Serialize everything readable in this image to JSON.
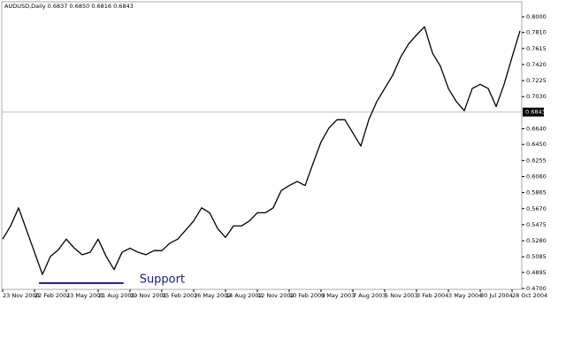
{
  "chart_data": {
    "type": "line",
    "title": "AUDUSD,Daily  0.6837 0.6850 0.6816 0.6843",
    "x": [
      0,
      16,
      32,
      48,
      64,
      80,
      96,
      112,
      128,
      144,
      160,
      176,
      192,
      208,
      224,
      240,
      256,
      272,
      288,
      304,
      320,
      336,
      352,
      368,
      384,
      400,
      416,
      432,
      448,
      464,
      480,
      496,
      512,
      528,
      544,
      560,
      576,
      592,
      608,
      624,
      640,
      656,
      672,
      688,
      704,
      720,
      736,
      752,
      768,
      784,
      800,
      816,
      832,
      848,
      864,
      880,
      896,
      912,
      928,
      944,
      960,
      976,
      992,
      1008,
      1024,
      1040
    ],
    "series": [
      {
        "color": "#000000",
        "values": [
          0.53,
          0.546,
          0.568,
          0.541,
          0.514,
          0.487,
          0.509,
          0.517,
          0.53,
          0.519,
          0.511,
          0.514,
          0.53,
          0.509,
          0.493,
          0.514,
          0.519,
          0.514,
          0.511,
          0.516,
          0.516,
          0.525,
          0.53,
          0.541,
          0.552,
          0.568,
          0.562,
          0.543,
          0.532,
          0.546,
          0.546,
          0.552,
          0.562,
          0.562,
          0.568,
          0.589,
          0.595,
          0.6,
          0.595,
          0.622,
          0.648,
          0.665,
          0.675,
          0.675,
          0.659,
          0.643,
          0.675,
          0.697,
          0.713,
          0.729,
          0.751,
          0.767,
          0.778,
          0.788,
          0.756,
          0.74,
          0.713,
          0.697,
          0.686,
          0.713,
          0.718,
          0.713,
          0.691,
          0.718,
          0.751,
          0.783
        ]
      }
    ],
    "xlim": [
      0,
      1040
    ],
    "xticks": [
      {
        "value": 0,
        "label": "23 Nov 2000"
      },
      {
        "value": 64,
        "label": "22 Feb 2001"
      },
      {
        "value": 128,
        "label": "23 May 2001"
      },
      {
        "value": 192,
        "label": "21 Aug 2001"
      },
      {
        "value": 256,
        "label": "19 Nov 2001"
      },
      {
        "value": 320,
        "label": "15 Feb 2002"
      },
      {
        "value": 384,
        "label": "16 May 2002"
      },
      {
        "value": 448,
        "label": "14 Aug 2002"
      },
      {
        "value": 512,
        "label": "12 Nov 2002"
      },
      {
        "value": 576,
        "label": "10 Feb 2003"
      },
      {
        "value": 640,
        "label": "9 May 2003"
      },
      {
        "value": 704,
        "label": "7 Aug 2003"
      },
      {
        "value": 768,
        "label": "5 Nov 2003"
      },
      {
        "value": 832,
        "label": "3 Feb 2004"
      },
      {
        "value": 896,
        "label": "3 May 2004"
      },
      {
        "value": 960,
        "label": "30 Jul 2004"
      },
      {
        "value": 1024,
        "label": "28 Oct 2004"
      }
    ],
    "ylim": [
      0.4689,
      0.8183
    ],
    "yticks": [
      {
        "value": 0.8,
        "label": "0.8000"
      },
      {
        "value": 0.781,
        "label": "0.7810"
      },
      {
        "value": 0.7615,
        "label": "0.7615"
      },
      {
        "value": 0.742,
        "label": "0.7420"
      },
      {
        "value": 0.7225,
        "label": "0.7225"
      },
      {
        "value": 0.703,
        "label": "0.7030"
      },
      {
        "value": 0.664,
        "label": "0.6640"
      },
      {
        "value": 0.645,
        "label": "0.6450"
      },
      {
        "value": 0.6255,
        "label": "0.6255"
      },
      {
        "value": 0.606,
        "label": "0.6060"
      },
      {
        "value": 0.5865,
        "label": "0.5865"
      },
      {
        "value": 0.567,
        "label": "0.5670"
      },
      {
        "value": 0.5475,
        "label": "0.5475"
      },
      {
        "value": 0.528,
        "label": "0.5280"
      },
      {
        "value": 0.5085,
        "label": "0.5085"
      },
      {
        "value": 0.4895,
        "label": "0.4895"
      },
      {
        "value": 0.47,
        "label": "0.4700"
      }
    ],
    "current_price": {
      "value": 0.6843,
      "label": "0.6843"
    },
    "support": {
      "label": "Support",
      "value": 0.4765,
      "from": 73,
      "to": 243,
      "color": "#1a1a8c"
    }
  }
}
